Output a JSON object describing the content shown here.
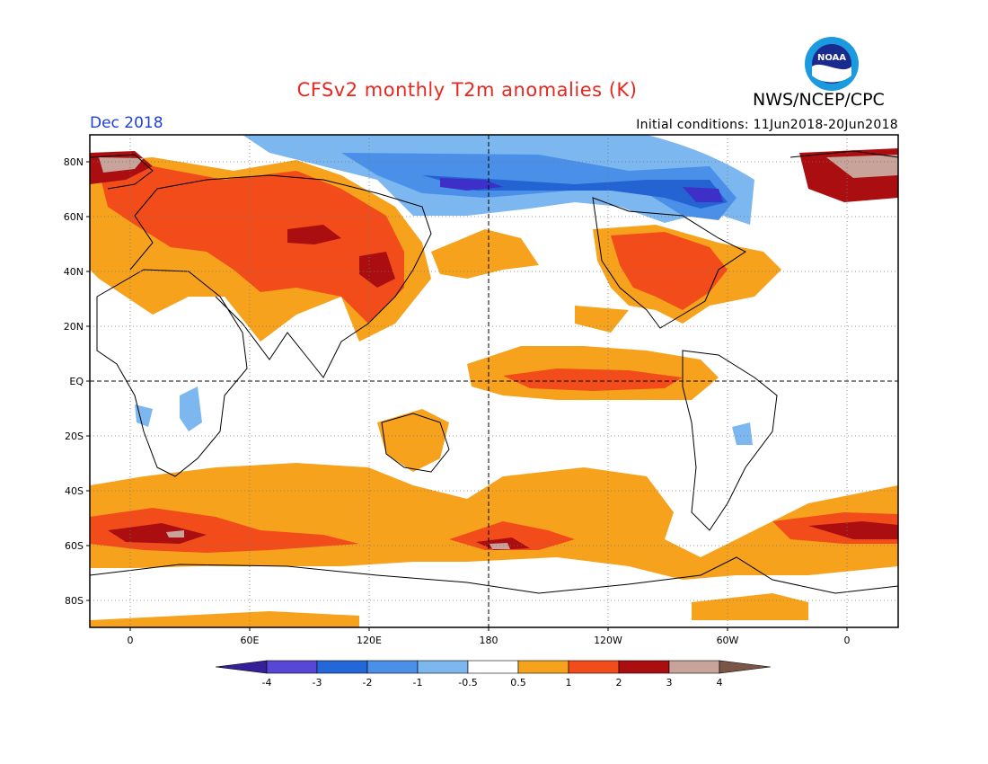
{
  "title": "CFSv2 monthly T2m anomalies (K)",
  "organization": "NWS/NCEP/CPC",
  "logo_text": "NOAA",
  "valid_month": "Dec 2018",
  "initial_conditions": "Initial conditions: 11Jun2018-20Jun2018",
  "map": {
    "lat_labels": [
      "80N",
      "60N",
      "40N",
      "20N",
      "EQ",
      "20S",
      "40S",
      "60S",
      "80S"
    ],
    "lon_labels": [
      "0",
      "60E",
      "120E",
      "180",
      "120W",
      "60W",
      "0"
    ],
    "colors": {
      "ocean_background": "#ffffff",
      "neg_05_1": "#7db7f0",
      "neg_1_2": "#4a90e8",
      "neg_2_3": "#2364d2",
      "neg_3_4": "#3d2fc8",
      "pos_05_1": "#f7a21d",
      "pos_1_2": "#f24c1b",
      "pos_2_3": "#aa0e10",
      "pos_3_4": "#c7a39a"
    }
  },
  "colorbar": {
    "tick_labels": [
      "-4",
      "-3",
      "-2",
      "-1",
      "-0.5",
      "0.5",
      "1",
      "2",
      "3",
      "4"
    ],
    "colors": [
      "#36209a",
      "#5846d6",
      "#2467d8",
      "#4a90e8",
      "#7db7f0",
      "#ffffff",
      "#f7a21d",
      "#f24c1b",
      "#aa0e10",
      "#c7a39a",
      "#7a5548"
    ]
  }
}
